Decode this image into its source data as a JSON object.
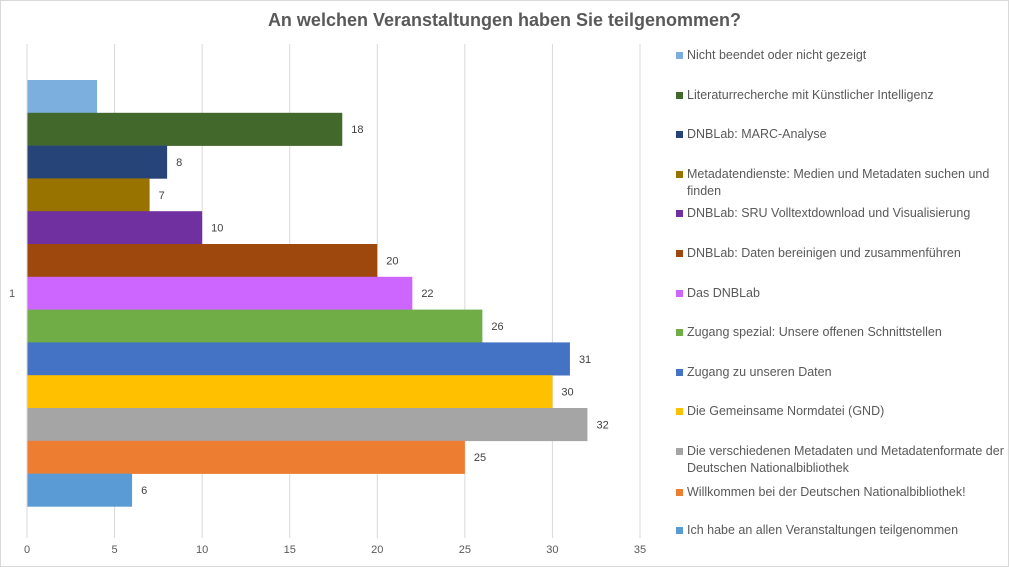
{
  "chart_data": {
    "type": "bar",
    "orientation": "horizontal",
    "title": "An welchen Veranstaltungen haben Sie teilgenommen?",
    "xlabel": "",
    "ylabel": "",
    "categories": [
      "1"
    ],
    "xlim": [
      0,
      35
    ],
    "x_ticks": [
      "0",
      "5",
      "10",
      "15",
      "20",
      "25",
      "30",
      "35"
    ],
    "grid": true,
    "legend_position": "right",
    "series": [
      {
        "name": "Nicht beendet oder nicht gezeigt",
        "value": 4,
        "color": "#7dafde",
        "label": ""
      },
      {
        "name": "Literaturrecherche mit Künstlicher Intelligenz",
        "value": 18,
        "color": "#43682b",
        "label": "18"
      },
      {
        "name": "DNBLab: MARC-Analyse",
        "value": 8,
        "color": "#264478",
        "label": "8"
      },
      {
        "name": "Metadatendienste: Medien und Metadaten suchen und finden",
        "value": 7,
        "color": "#997300",
        "label": "7"
      },
      {
        "name": "DNBLab: SRU Volltextdownload und Visualisierung",
        "value": 10,
        "color": "#7030a0",
        "label": "10"
      },
      {
        "name": "DNBLab: Daten bereinigen und zusammenführen",
        "value": 20,
        "color": "#9e480e",
        "label": "20"
      },
      {
        "name": "Das DNBLab",
        "value": 22,
        "color": "#cc66ff",
        "label": "22"
      },
      {
        "name": "Zugang spezial: Unsere offenen Schnittstellen",
        "value": 26,
        "color": "#70ad47",
        "label": "26"
      },
      {
        "name": "Zugang zu unseren Daten",
        "value": 31,
        "color": "#4472c4",
        "label": "31"
      },
      {
        "name": "Die Gemeinsame Normdatei (GND)",
        "value": 30,
        "color": "#ffc000",
        "label": "30"
      },
      {
        "name": "Die verschiedenen Metadaten und Metadatenformate der Deutschen Nationalbibliothek",
        "value": 32,
        "color": "#a5a5a5",
        "label": "32"
      },
      {
        "name": "Willkommen bei der Deutschen Nationalbibliothek!",
        "value": 25,
        "color": "#ed7d31",
        "label": "25"
      },
      {
        "name": "Ich habe an allen Veranstaltungen teilgenommen",
        "value": 6,
        "color": "#5b9bd5",
        "label": "6"
      }
    ]
  },
  "legend": {
    "items": [
      "Nicht beendet oder nicht gezeigt",
      "Literaturrecherche mit Künstlicher Intelligenz",
      "DNBLab: MARC-Analyse",
      "Metadatendienste: Medien und Metadaten suchen und finden",
      "DNBLab: SRU Volltextdownload und Visualisierung",
      "DNBLab: Daten bereinigen und zusammenführen",
      "Das DNBLab",
      "Zugang spezial: Unsere offenen Schnittstellen",
      "Zugang zu unseren Daten",
      "Die Gemeinsame Normdatei (GND)",
      "Die verschiedenen Metadaten und Metadatenformate der Deutschen Nationalbibliothek",
      "Willkommen bei der Deutschen Nationalbibliothek!",
      "Ich habe an allen Veranstaltungen teilgenommen"
    ]
  }
}
